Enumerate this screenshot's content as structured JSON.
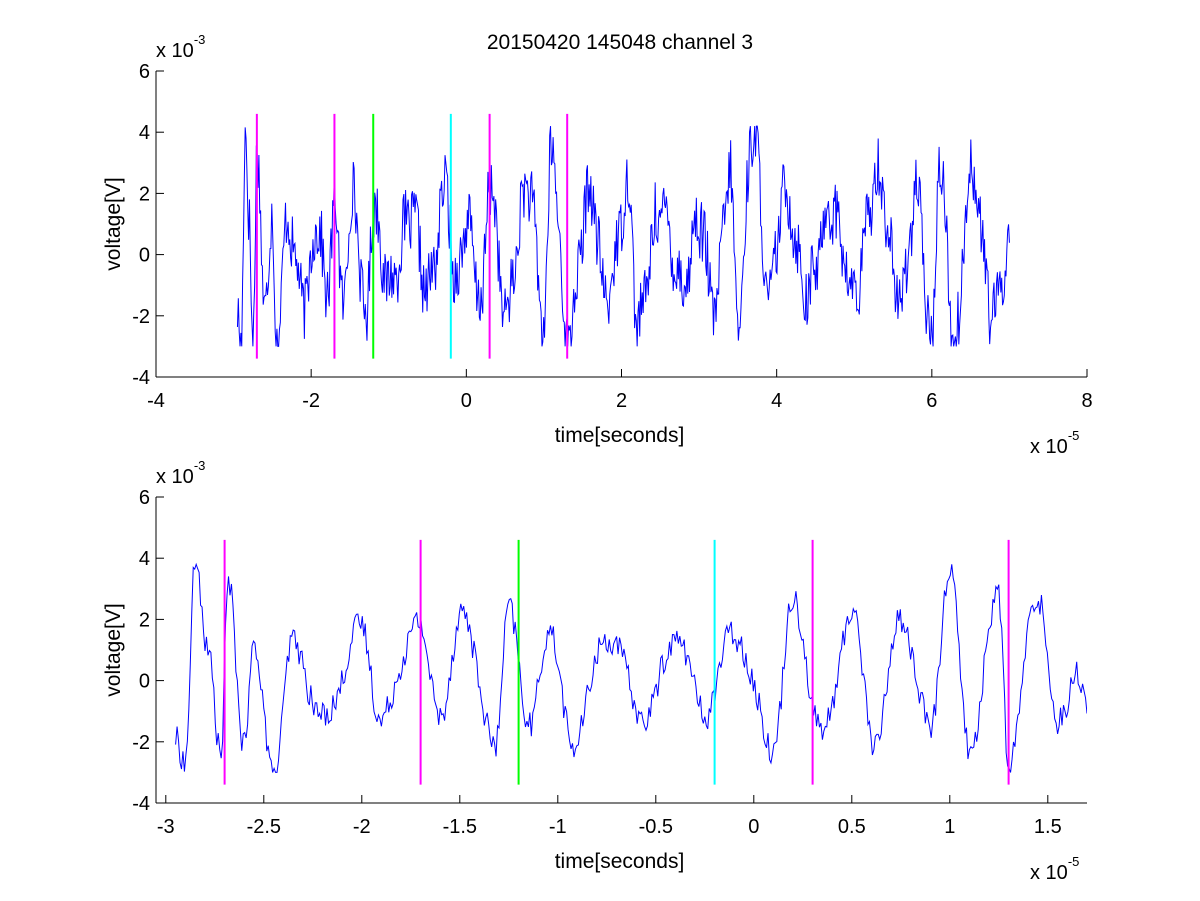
{
  "figure": {
    "title": "20150420 145048 channel 3"
  },
  "chart_data": [
    {
      "type": "line",
      "title": "20150420 145048 channel 3",
      "xlabel": "time[seconds]",
      "ylabel": "voltage[V]",
      "x_exponent_label": "x 10",
      "x_exponent": "-5",
      "y_exponent_label": "x 10",
      "y_exponent": "-3",
      "xlim": [
        -4,
        8
      ],
      "ylim": [
        -4,
        6
      ],
      "xticks": [
        -4,
        -2,
        0,
        2,
        4,
        6,
        8
      ],
      "xtick_labels": [
        "-4",
        "-2",
        "0",
        "2",
        "4",
        "6",
        "8"
      ],
      "yticks": [
        -4,
        -2,
        0,
        2,
        4,
        6
      ],
      "ytick_labels": [
        "-4",
        "-2",
        "0",
        "2",
        "4",
        "6"
      ],
      "grid": false,
      "signal": {
        "name": "",
        "color": "#0000ff",
        "x_start": -2.95,
        "x_end": 7.0,
        "y_range": [
          -3.0,
          4.2
        ],
        "points": [
          [
            -2.95,
            -1.6
          ],
          [
            -2.9,
            -2.8
          ],
          [
            -2.85,
            3.7
          ],
          [
            -2.8,
            1.2
          ],
          [
            -2.75,
            -2.6
          ],
          [
            -2.7,
            3.1
          ],
          [
            -2.6,
            -1.5
          ],
          [
            -2.5,
            1.0
          ],
          [
            -2.45,
            -2.9
          ],
          [
            -2.3,
            1.1
          ],
          [
            -2.1,
            -1.5
          ],
          [
            -1.9,
            1.1
          ],
          [
            -1.8,
            -1.6
          ],
          [
            -1.7,
            1.8
          ],
          [
            -1.6,
            -1.4
          ],
          [
            -1.45,
            2.0
          ],
          [
            -1.3,
            -2.3
          ],
          [
            -1.2,
            1.5
          ],
          [
            -1.0,
            -1.0
          ],
          [
            -0.7,
            1.3
          ],
          [
            -0.5,
            -1.2
          ],
          [
            -0.25,
            2.2
          ],
          [
            -0.15,
            -1.0
          ],
          [
            0.0,
            1.0
          ],
          [
            0.2,
            -1.6
          ],
          [
            0.3,
            2.5
          ],
          [
            0.5,
            -1.9
          ],
          [
            0.8,
            2.3
          ],
          [
            1.0,
            -2.2
          ],
          [
            1.1,
            3.5
          ],
          [
            1.3,
            -2.7
          ],
          [
            1.6,
            2.0
          ],
          [
            1.8,
            -1.4
          ],
          [
            2.1,
            2.2
          ],
          [
            2.2,
            -2.3
          ],
          [
            2.5,
            1.5
          ],
          [
            2.8,
            -1.0
          ],
          [
            3.0,
            1.2
          ],
          [
            3.2,
            -1.8
          ],
          [
            3.4,
            2.7
          ],
          [
            3.5,
            -2.2
          ],
          [
            3.7,
            4.2
          ],
          [
            3.9,
            -1.5
          ],
          [
            4.1,
            2.0
          ],
          [
            4.4,
            -1.2
          ],
          [
            4.7,
            1.6
          ],
          [
            5.0,
            -1.3
          ],
          [
            5.3,
            2.6
          ],
          [
            5.6,
            -1.5
          ],
          [
            5.8,
            2.0
          ],
          [
            6.0,
            -3.0
          ],
          [
            6.1,
            3.0
          ],
          [
            6.3,
            -3.0
          ],
          [
            6.5,
            2.8
          ],
          [
            6.8,
            -2.0
          ],
          [
            7.0,
            0.3
          ]
        ]
      },
      "markers": [
        {
          "x": -2.7,
          "color": "#ff00ff"
        },
        {
          "x": -1.7,
          "color": "#ff00ff"
        },
        {
          "x": -1.2,
          "color": "#00ff00"
        },
        {
          "x": -0.2,
          "color": "#00ffff"
        },
        {
          "x": 0.3,
          "color": "#ff00ff"
        },
        {
          "x": 1.3,
          "color": "#ff00ff"
        }
      ],
      "marker_y_range": [
        -3.4,
        4.6
      ]
    },
    {
      "type": "line",
      "title": "",
      "xlabel": "time[seconds]",
      "ylabel": "voltage[V]",
      "x_exponent_label": "x 10",
      "x_exponent": "-5",
      "y_exponent_label": "x 10",
      "y_exponent": "-3",
      "xlim": [
        -3.05,
        1.7
      ],
      "ylim": [
        -4,
        6
      ],
      "xticks": [
        -3,
        -2.5,
        -2,
        -1.5,
        -1,
        -0.5,
        0,
        0.5,
        1,
        1.5
      ],
      "xtick_labels": [
        "-3",
        "-2.5",
        "-2",
        "-1.5",
        "-1",
        "-0.5",
        "0",
        "0.5",
        "1",
        "1.5"
      ],
      "yticks": [
        -4,
        -2,
        0,
        2,
        4,
        6
      ],
      "ytick_labels": [
        "-4",
        "-2",
        "0",
        "2",
        "4",
        "6"
      ],
      "grid": false,
      "signal": {
        "name": "",
        "color": "#0000ff",
        "x_start": -2.95,
        "x_end": 1.7,
        "y_range": [
          -3.0,
          3.8
        ],
        "points": [
          [
            -2.95,
            -1.7
          ],
          [
            -2.9,
            -2.8
          ],
          [
            -2.85,
            3.8
          ],
          [
            -2.78,
            1.0
          ],
          [
            -2.72,
            -2.6
          ],
          [
            -2.68,
            3.1
          ],
          [
            -2.6,
            -2.0
          ],
          [
            -2.55,
            1.0
          ],
          [
            -2.45,
            -3.0
          ],
          [
            -2.35,
            1.2
          ],
          [
            -2.2,
            -1.3
          ],
          [
            -2.0,
            1.7
          ],
          [
            -1.9,
            -1.3
          ],
          [
            -1.72,
            1.9
          ],
          [
            -1.6,
            -1.0
          ],
          [
            -1.48,
            2.2
          ],
          [
            -1.32,
            -2.3
          ],
          [
            -1.25,
            2.6
          ],
          [
            -1.15,
            -1.6
          ],
          [
            -1.05,
            1.6
          ],
          [
            -0.92,
            -2.0
          ],
          [
            -0.75,
            1.5
          ],
          [
            -0.55,
            -1.2
          ],
          [
            -0.4,
            1.5
          ],
          [
            -0.25,
            -1.0
          ],
          [
            -0.1,
            1.6
          ],
          [
            0.1,
            -2.1
          ],
          [
            0.2,
            2.6
          ],
          [
            0.35,
            -1.8
          ],
          [
            0.5,
            2.2
          ],
          [
            0.62,
            -2.0
          ],
          [
            0.75,
            2.1
          ],
          [
            0.9,
            -1.6
          ],
          [
            1.0,
            3.7
          ],
          [
            1.1,
            -2.2
          ],
          [
            1.25,
            2.8
          ],
          [
            1.3,
            -2.7
          ],
          [
            1.45,
            2.9
          ],
          [
            1.55,
            -1.5
          ],
          [
            1.65,
            0.4
          ],
          [
            1.7,
            -1.1
          ]
        ]
      },
      "markers": [
        {
          "x": -2.7,
          "color": "#ff00ff"
        },
        {
          "x": -1.7,
          "color": "#ff00ff"
        },
        {
          "x": -1.2,
          "color": "#00ff00"
        },
        {
          "x": -0.2,
          "color": "#00ffff"
        },
        {
          "x": 0.3,
          "color": "#ff00ff"
        },
        {
          "x": 1.3,
          "color": "#ff00ff"
        }
      ],
      "marker_y_range": [
        -3.4,
        4.6
      ]
    }
  ]
}
